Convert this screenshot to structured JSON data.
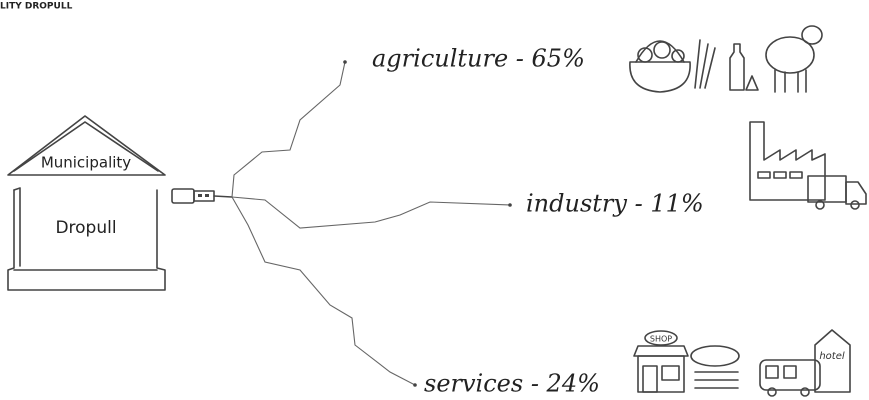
{
  "header": {
    "title": "LITY DROPULL"
  },
  "building": {
    "roof": "Municipality",
    "name": "Dropull"
  },
  "branches": [
    {
      "label": "agriculture - 65%"
    },
    {
      "label": "industry - 11%"
    },
    {
      "label": "services - 24%"
    }
  ],
  "icons": {
    "shop": "SHOP",
    "hotel": "hotel"
  }
}
